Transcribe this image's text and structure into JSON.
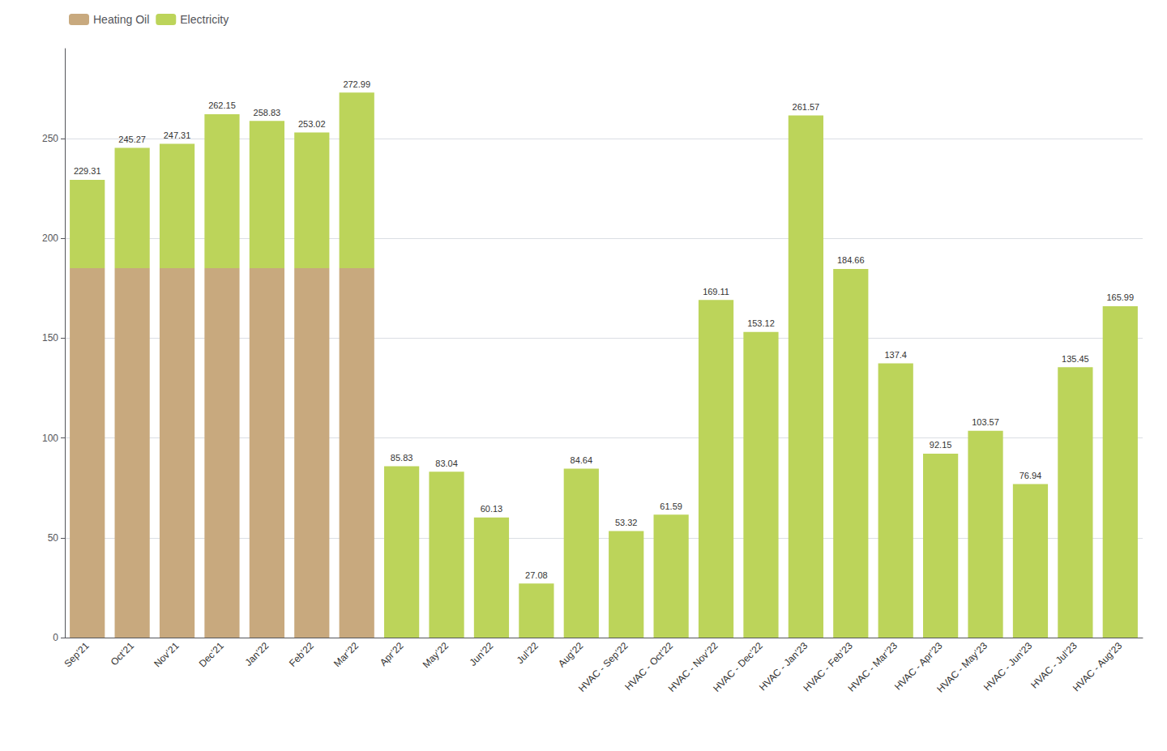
{
  "chart_data": {
    "type": "bar",
    "stacked": true,
    "categories": [
      "Sep’21",
      "Oct’21",
      "Nov’21",
      "Dec’21",
      "Jan’22",
      "Feb’22",
      "Mar’22",
      "Apr’22",
      "May’22",
      "Jun’22",
      "Jul’22",
      "Aug’22",
      "HVAC - Sep’22",
      "HVAC - Oct’22",
      "HVAC - Nov’22",
      "HVAC - Dec’22",
      "HVAC - Jan’23",
      "HVAC - Feb’23",
      "HVAC - Mar’23",
      "HVAC - Apr’23",
      "HVAC - May’23",
      "HVAC - Jun’23",
      "HVAC - Jul’23",
      "HVAC - Aug’23"
    ],
    "series": [
      {
        "name": "Heating Oil",
        "color": "#c8a97e",
        "values": [
          185.0,
          185.0,
          185.0,
          185.0,
          185.0,
          185.0,
          185.0,
          0,
          0,
          0,
          0,
          0,
          0,
          0,
          0,
          0,
          0,
          0,
          0,
          0,
          0,
          0,
          0,
          0
        ]
      },
      {
        "name": "Electricity",
        "color": "#bcd45a",
        "values": [
          44.31,
          60.27,
          62.31,
          77.15,
          73.83,
          68.02,
          87.99,
          85.83,
          83.04,
          60.13,
          27.08,
          84.64,
          53.32,
          61.59,
          169.11,
          153.12,
          261.57,
          184.66,
          137.4,
          92.15,
          103.57,
          76.94,
          135.45,
          165.99
        ]
      }
    ],
    "totals": [
      229.31,
      245.27,
      247.31,
      262.15,
      258.83,
      253.02,
      272.99,
      85.83,
      83.04,
      60.13,
      27.08,
      84.64,
      53.32,
      61.59,
      169.11,
      153.12,
      261.57,
      184.66,
      137.4,
      92.15,
      103.57,
      76.94,
      135.45,
      165.99
    ],
    "ylim": [
      0,
      295
    ],
    "yticks": [
      0,
      50,
      100,
      150,
      200,
      250
    ],
    "grid": true,
    "legend": "upper left"
  }
}
